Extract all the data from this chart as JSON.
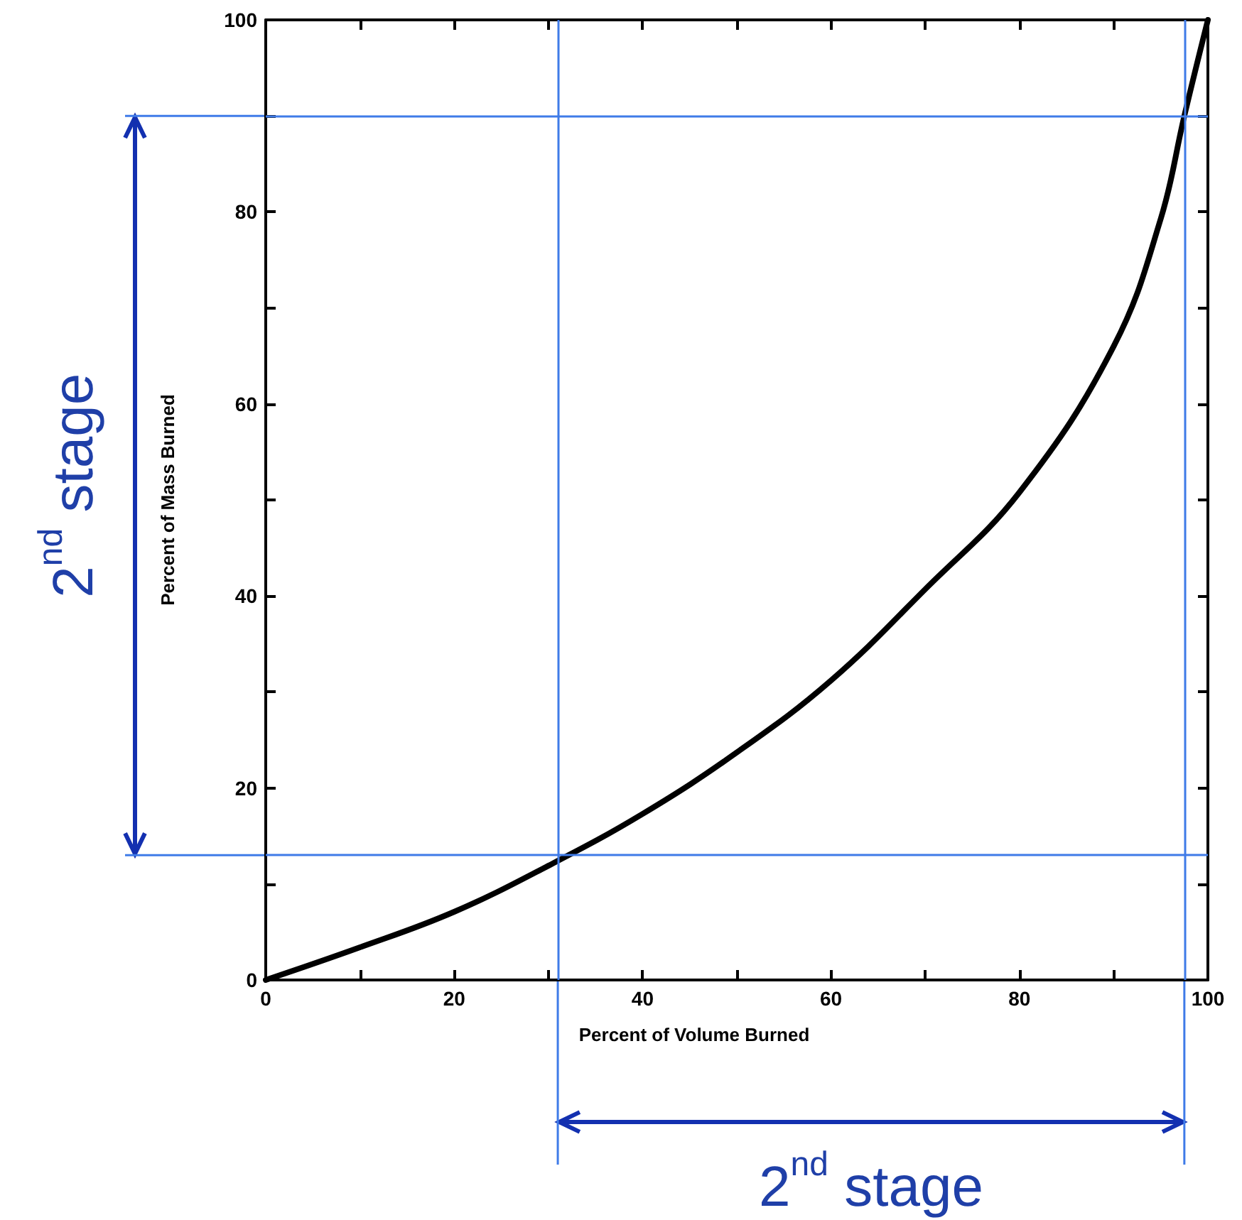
{
  "chart_data": {
    "type": "line",
    "xlabel": "Percent of Volume Burned",
    "ylabel": "Percent of Mass Burned",
    "x": [
      0,
      10,
      20,
      30,
      40,
      50,
      60,
      70,
      80,
      90,
      95,
      97.5,
      100
    ],
    "series": [
      {
        "color": "#000000",
        "values": [
          0,
          3.4,
          7.1,
          11.9,
          17.3,
          23.7,
          31.2,
          40.7,
          50.8,
          66,
          79.3,
          90,
          100
        ]
      }
    ],
    "xlim": [
      0,
      100
    ],
    "ylim": [
      0,
      100
    ],
    "xticks": [
      0,
      {
        "value": 10,
        "label": null
      },
      20,
      {
        "value": 30,
        "label": null
      },
      40,
      {
        "value": 50,
        "label": null
      },
      60,
      {
        "value": 70,
        "label": null
      },
      80,
      {
        "value": 90,
        "label": null
      },
      100
    ],
    "yticks": [
      0,
      {
        "value": 10,
        "label": null
      },
      20,
      {
        "value": 30,
        "label": null
      },
      40,
      {
        "value": 50,
        "label": null
      },
      60,
      {
        "value": 70,
        "label": null
      },
      80,
      {
        "value": 90,
        "label": null
      },
      100
    ],
    "ref_lines": [
      {
        "axis": "y",
        "value": 90,
        "color": "#3f7be8"
      },
      {
        "axis": "y",
        "value": 13,
        "color": "#3f7be8"
      },
      {
        "axis": "x",
        "value": 31,
        "color": "#3f7be8"
      },
      {
        "axis": "x",
        "value": 97.5,
        "color": "#3f7be8"
      }
    ],
    "annotations": [
      "2$^{nd}$ stage",
      "2$^{nd}$ stage"
    ],
    "grid": false,
    "marker": "none",
    "line_style": "solid"
  }
}
